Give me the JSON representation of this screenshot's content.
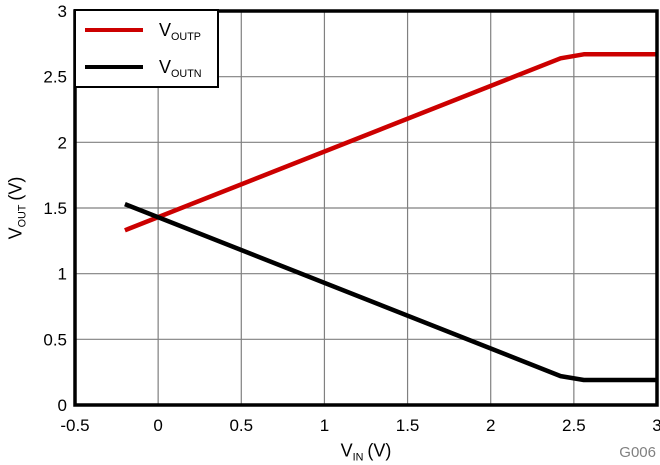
{
  "chart_data": {
    "type": "line",
    "title": "",
    "xlabel": {
      "base": "V",
      "sub": "IN",
      "suffix": "(V)"
    },
    "ylabel": {
      "base": "V",
      "sub": "OUT",
      "suffix": "(V)"
    },
    "xlim": [
      -0.5,
      3
    ],
    "ylim": [
      0,
      3
    ],
    "xticks": [
      -0.5,
      0,
      0.5,
      1,
      1.5,
      2,
      2.5,
      3
    ],
    "yticks": [
      0,
      0.5,
      1,
      1.5,
      2,
      2.5,
      3
    ],
    "grid": true,
    "legend_position": "top-left",
    "colors": {
      "grid": "#808080",
      "frame": "#000000",
      "tick_text": "#000000",
      "watermark": "#808080"
    },
    "series": [
      {
        "name": "VOUTP",
        "label": {
          "base": "V",
          "sub": "OUTP"
        },
        "color": "#cc0000",
        "points": [
          [
            -0.2,
            1.33
          ],
          [
            2.42,
            2.64
          ],
          [
            2.56,
            2.67
          ],
          [
            3,
            2.67
          ]
        ]
      },
      {
        "name": "VOUTN",
        "label": {
          "base": "V",
          "sub": "OUTN"
        },
        "color": "#000000",
        "points": [
          [
            -0.2,
            1.53
          ],
          [
            2.42,
            0.22
          ],
          [
            2.56,
            0.19
          ],
          [
            3,
            0.19
          ]
        ]
      }
    ],
    "annotations": {
      "watermark": "G006"
    }
  }
}
